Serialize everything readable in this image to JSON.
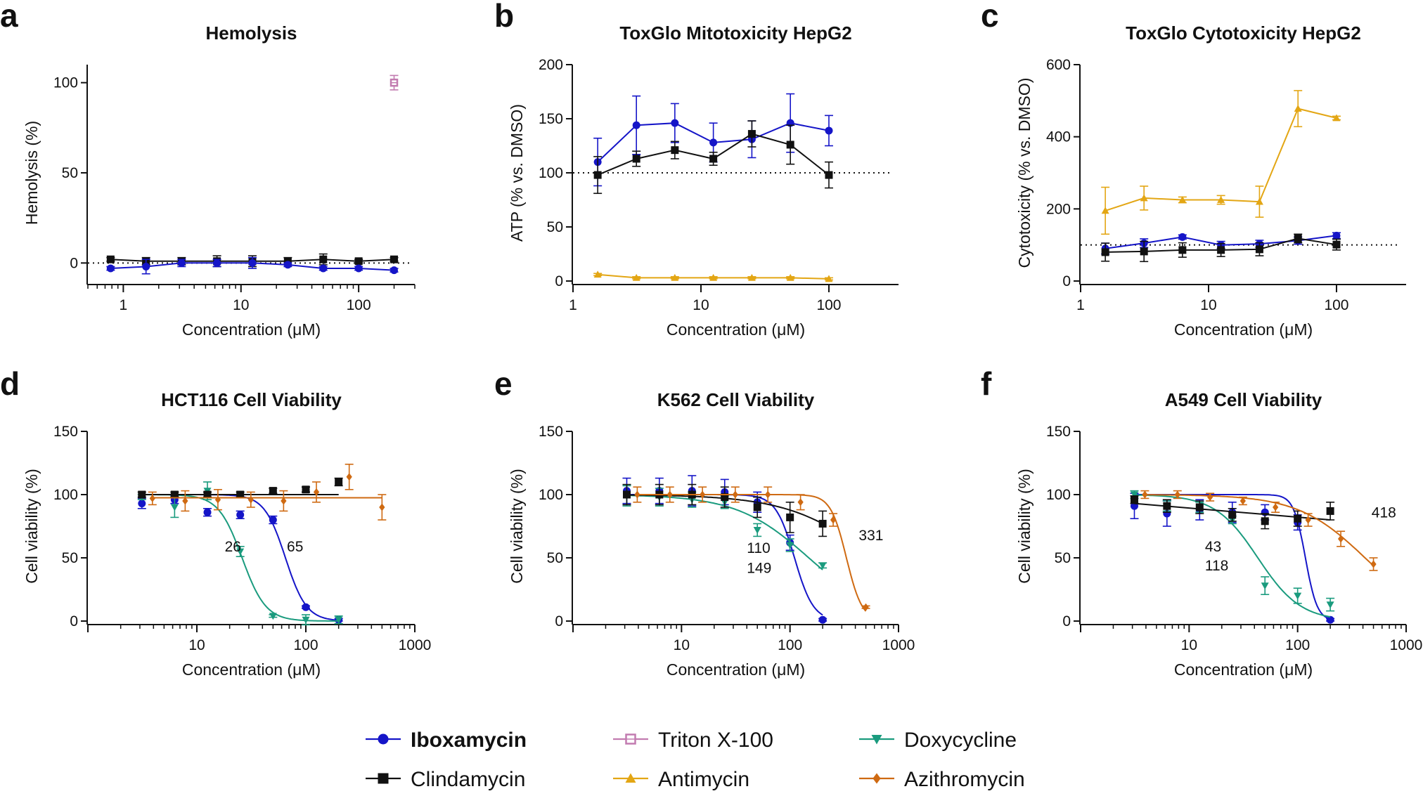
{
  "colors": {
    "Iboxamycin": "#1515c8",
    "Clindamycin": "#111111",
    "Triton X-100": "#c27bb0",
    "Antimycin": "#e3a614",
    "Doxycycline": "#1a9b7e",
    "Azithromycin": "#cf6a12"
  },
  "legend": [
    {
      "name": "Iboxamycin",
      "marker": "circle",
      "bold": true
    },
    {
      "name": "Clindamycin",
      "marker": "square"
    },
    {
      "name": "Triton X-100",
      "marker": "open-square"
    },
    {
      "name": "Antimycin",
      "marker": "triangle-up"
    },
    {
      "name": "Doxycycline",
      "marker": "triangle-down"
    },
    {
      "name": "Azithromycin",
      "marker": "diamond"
    }
  ],
  "chart_data": [
    {
      "id": "a",
      "letter": "a",
      "type": "scatter",
      "title": "Hemolysis",
      "xlabel": "Concentration (μM)",
      "ylabel": "Hemolysis (%)",
      "xscale": "log",
      "xlim": [
        0.5,
        300
      ],
      "ylim": [
        -10,
        110
      ],
      "yticks": [
        0,
        50,
        100
      ],
      "xticks": [
        1,
        10,
        100
      ],
      "xticklabels": [
        "1",
        "10",
        "100"
      ],
      "minor_ticks": true,
      "reference_line": 0,
      "series": [
        {
          "name": "Clindamycin",
          "x": [
            0.78,
            1.56,
            3.13,
            6.25,
            12.5,
            25,
            50,
            100,
            200
          ],
          "y": [
            2,
            1,
            1,
            1,
            1,
            1,
            2,
            1,
            2
          ],
          "err": [
            1,
            2,
            2,
            3,
            3,
            2,
            3,
            1,
            1
          ],
          "line": true
        },
        {
          "name": "Iboxamycin",
          "x": [
            0.78,
            1.56,
            3.13,
            6.25,
            12.5,
            25,
            50,
            100,
            200
          ],
          "y": [
            -3,
            -2,
            0,
            0,
            0,
            -1,
            -3,
            -3,
            -4
          ],
          "err": [
            1,
            4,
            2,
            2,
            3,
            1,
            1,
            1,
            1
          ],
          "line": true
        },
        {
          "name": "Triton X-100",
          "x": [
            200
          ],
          "y": [
            100
          ],
          "err": [
            4
          ],
          "line": false
        }
      ]
    },
    {
      "id": "b",
      "letter": "b",
      "type": "line",
      "title": "ToxGlo Mitotoxicity HepG2",
      "xlabel": "Concentration (μM)",
      "ylabel": "ATP (% vs.  DMSO)",
      "xscale": "log",
      "xlim": [
        1,
        350
      ],
      "ylim": [
        0,
        200
      ],
      "yticks": [
        0,
        50,
        100,
        150,
        200
      ],
      "xticks": [
        1,
        10,
        100
      ],
      "xticklabels": [
        "1",
        "10",
        "100"
      ],
      "minor_ticks": false,
      "reference_line": 100,
      "series": [
        {
          "name": "Iboxamycin",
          "x": [
            1.56,
            3.13,
            6.25,
            12.5,
            25,
            50,
            100
          ],
          "y": [
            110,
            144,
            146,
            128,
            131,
            146,
            139
          ],
          "err": [
            22,
            27,
            18,
            18,
            17,
            27,
            14
          ],
          "line": true
        },
        {
          "name": "Clindamycin",
          "x": [
            1.56,
            3.13,
            6.25,
            12.5,
            25,
            50,
            100
          ],
          "y": [
            98,
            113,
            121,
            113,
            136,
            126,
            98
          ],
          "err": [
            17,
            7,
            8,
            6,
            12,
            18,
            12
          ],
          "line": true
        },
        {
          "name": "Antimycin",
          "x": [
            1.56,
            3.13,
            6.25,
            12.5,
            25,
            50,
            100
          ],
          "y": [
            6,
            3,
            3,
            3,
            3,
            3,
            2
          ],
          "err": [
            1,
            1,
            1,
            1,
            1,
            1,
            1
          ],
          "line": true
        }
      ]
    },
    {
      "id": "c",
      "letter": "c",
      "type": "line",
      "title": "ToxGlo Cytotoxicity HepG2",
      "xlabel": "Concentration (μM)",
      "ylabel": "Cytotoxicity (% vs. DMSO)",
      "xscale": "log",
      "xlim": [
        1,
        350
      ],
      "ylim": [
        0,
        600
      ],
      "yticks": [
        0,
        200,
        400,
        600
      ],
      "xticks": [
        1,
        10,
        100
      ],
      "xticklabels": [
        "1",
        "10",
        "100"
      ],
      "minor_ticks": false,
      "reference_line": 100,
      "series": [
        {
          "name": "Antimycin",
          "x": [
            1.56,
            3.13,
            6.25,
            12.5,
            25,
            50,
            100
          ],
          "y": [
            195,
            230,
            225,
            225,
            220,
            478,
            452
          ],
          "err": [
            65,
            33,
            8,
            12,
            43,
            50,
            5
          ],
          "line": true
        },
        {
          "name": "Iboxamycin",
          "x": [
            1.56,
            3.13,
            6.25,
            12.5,
            25,
            50,
            100
          ],
          "y": [
            90,
            105,
            122,
            100,
            103,
            112,
            126
          ],
          "err": [
            15,
            12,
            6,
            10,
            10,
            10,
            8
          ],
          "line": true
        },
        {
          "name": "Clindamycin",
          "x": [
            1.56,
            3.13,
            6.25,
            12.5,
            25,
            50,
            100
          ],
          "y": [
            80,
            82,
            86,
            86,
            88,
            118,
            101
          ],
          "err": [
            25,
            28,
            20,
            18,
            18,
            12,
            15
          ],
          "line": true
        }
      ]
    },
    {
      "id": "d",
      "letter": "d",
      "type": "scatter",
      "title": "HCT116 Cell Viability",
      "xlabel": "Concentration (μM)",
      "ylabel": "Cell viability (%)",
      "xscale": "log",
      "xlim": [
        1,
        1000
      ],
      "ylim": [
        0,
        150
      ],
      "yticks": [
        0,
        50,
        100,
        150
      ],
      "xticks": [
        10,
        100,
        1000
      ],
      "xticklabels": [
        "10",
        "100",
        "1000"
      ],
      "minor_ticks": true,
      "reference_line": null,
      "series": [
        {
          "name": "Iboxamycin",
          "x": [
            3.13,
            6.25,
            12.5,
            25,
            50,
            100,
            200
          ],
          "y": [
            93,
            96,
            86,
            84,
            80,
            11,
            1
          ],
          "err": [
            4,
            3,
            3,
            3,
            3,
            1,
            1
          ],
          "fit": {
            "top": 100,
            "bottom": 0,
            "ic50": 65,
            "hill": 4.5
          }
        },
        {
          "name": "Doxycycline",
          "x": [
            3.13,
            6.25,
            12.5,
            25,
            50,
            100,
            200
          ],
          "y": [
            98,
            90,
            103,
            55,
            4,
            1,
            1
          ],
          "err": [
            2,
            8,
            7,
            4,
            1,
            4,
            3
          ],
          "fit": {
            "top": 100,
            "bottom": 0,
            "ic50": 26,
            "hill": 4
          }
        },
        {
          "name": "Clindamycin",
          "x": [
            3.13,
            6.25,
            12.5,
            25,
            50,
            100,
            200
          ],
          "y": [
            100,
            100,
            100,
            100,
            103,
            104,
            110
          ],
          "err": [
            2,
            2,
            2,
            2,
            2,
            2,
            3
          ],
          "fit": {
            "type": "flat",
            "value": 100,
            "xrange": [
              3.13,
              200
            ]
          }
        },
        {
          "name": "Azithromycin",
          "x": [
            3.91,
            7.81,
            15.6,
            31.3,
            62.5,
            125,
            250,
            500
          ],
          "y": [
            97,
            95,
            96,
            96,
            95,
            102,
            114,
            90
          ],
          "err": [
            5,
            8,
            8,
            6,
            8,
            8,
            10,
            10
          ],
          "fit": {
            "type": "flat",
            "value": 97.5,
            "xrange": [
              3.91,
              500
            ]
          }
        }
      ],
      "annotations": [
        {
          "text": "26",
          "x": 18,
          "y": 55,
          "series": "Doxycycline"
        },
        {
          "text": "65",
          "x": 67,
          "y": 55,
          "series": "Iboxamycin"
        }
      ]
    },
    {
      "id": "e",
      "letter": "e",
      "type": "scatter",
      "title": "K562 Cell Viability",
      "xlabel": "Concentration (μM)",
      "ylabel": "Cell viability (%)",
      "xscale": "log",
      "xlim": [
        1,
        1000
      ],
      "ylim": [
        0,
        150
      ],
      "yticks": [
        0,
        50,
        100,
        150
      ],
      "xticks": [
        10,
        100,
        1000
      ],
      "xticklabels": [
        "10",
        "100",
        "1000"
      ],
      "minor_ticks": true,
      "reference_line": null,
      "series": [
        {
          "name": "Iboxamycin",
          "x": [
            3.13,
            6.25,
            12.5,
            25,
            50,
            100,
            200
          ],
          "y": [
            103,
            103,
            103,
            102,
            94,
            62,
            1
          ],
          "err": [
            10,
            10,
            12,
            10,
            8,
            6,
            1
          ],
          "fit": {
            "top": 100,
            "bottom": 0,
            "ic50": 110,
            "hill": 5
          }
        },
        {
          "name": "Doxycycline",
          "x": [
            3.13,
            6.25,
            12.5,
            25,
            50,
            100,
            200
          ],
          "y": [
            99,
            98,
            96,
            94,
            72,
            60,
            44
          ],
          "err": [
            8,
            7,
            6,
            5,
            5,
            5,
            2
          ],
          "fit": {
            "top": 100,
            "bottom": 0,
            "ic50": 149,
            "hill": 1.3
          }
        },
        {
          "name": "Clindamycin",
          "x": [
            3.13,
            6.25,
            12.5,
            25,
            50,
            100,
            200
          ],
          "y": [
            100,
            100,
            100,
            98,
            90,
            82,
            77
          ],
          "err": [
            8,
            8,
            8,
            8,
            8,
            12,
            10
          ],
          "fit": {
            "top": 100,
            "bottom": 0,
            "ic50": 600,
            "hill": 1.1
          }
        },
        {
          "name": "Azithromycin",
          "x": [
            3.91,
            7.81,
            15.6,
            31.3,
            62.5,
            125,
            250,
            500
          ],
          "y": [
            100,
            100,
            100,
            100,
            100,
            94,
            80,
            11
          ],
          "err": [
            6,
            6,
            6,
            6,
            6,
            6,
            5,
            1
          ],
          "fit": {
            "top": 100,
            "bottom": 0,
            "ic50": 331,
            "hill": 6
          }
        }
      ],
      "annotations": [
        {
          "text": "110",
          "x": 40,
          "y": 54,
          "series": "Iboxamycin"
        },
        {
          "text": "149",
          "x": 40,
          "y": 38,
          "series": "Doxycycline"
        },
        {
          "text": "331",
          "x": 430,
          "y": 64,
          "series": "Azithromycin"
        }
      ]
    },
    {
      "id": "f",
      "letter": "f",
      "type": "scatter",
      "title": "A549 Cell Viability",
      "xlabel": "Concentration (μM)",
      "ylabel": "Cell viability (%)",
      "xscale": "log",
      "xlim": [
        1,
        1000
      ],
      "ylim": [
        0,
        150
      ],
      "yticks": [
        0,
        50,
        100,
        150
      ],
      "xticks": [
        10,
        100,
        1000
      ],
      "xticklabels": [
        "10",
        "100",
        "1000"
      ],
      "minor_ticks": true,
      "reference_line": null,
      "series": [
        {
          "name": "Iboxamycin",
          "x": [
            3.13,
            6.25,
            12.5,
            25,
            50,
            100,
            200
          ],
          "y": [
            91,
            85,
            88,
            86,
            86,
            78,
            1
          ],
          "err": [
            10,
            10,
            8,
            8,
            6,
            6,
            1
          ],
          "fit": {
            "top": 100,
            "bottom": 0,
            "ic50": 118,
            "hill": 8
          }
        },
        {
          "name": "Doxycycline",
          "x": [
            3.13,
            6.25,
            12.5,
            25,
            50,
            100,
            200
          ],
          "y": [
            100,
            91,
            90,
            80,
            28,
            20,
            13
          ],
          "err": [
            3,
            4,
            4,
            3,
            7,
            6,
            5
          ],
          "fit": {
            "top": 100,
            "bottom": 0,
            "ic50": 43,
            "hill": 2.2
          }
        },
        {
          "name": "Clindamycin",
          "x": [
            3.13,
            6.25,
            12.5,
            25,
            50,
            100,
            200
          ],
          "y": [
            96,
            91,
            90,
            84,
            79,
            81,
            87
          ],
          "err": [
            3,
            5,
            5,
            5,
            6,
            6,
            7
          ],
          "fit": {
            "type": "linear",
            "from": [
              3.13,
              93
            ],
            "to": [
              200,
              80
            ]
          }
        },
        {
          "name": "Azithromycin",
          "x": [
            3.91,
            7.81,
            15.6,
            31.3,
            62.5,
            125,
            250,
            500
          ],
          "y": [
            100,
            100,
            98,
            95,
            90,
            80,
            65,
            45
          ],
          "err": [
            3,
            3,
            3,
            3,
            4,
            5,
            6,
            5
          ],
          "fit": {
            "top": 100,
            "bottom": 0,
            "ic50": 418,
            "hill": 1.4
          }
        }
      ],
      "annotations": [
        {
          "text": "43",
          "x": 14,
          "y": 55,
          "series": "Doxycycline"
        },
        {
          "text": "118",
          "x": 14,
          "y": 40,
          "series": "Iboxamycin"
        },
        {
          "text": "418",
          "x": 480,
          "y": 82,
          "series": "Azithromycin"
        }
      ]
    }
  ]
}
